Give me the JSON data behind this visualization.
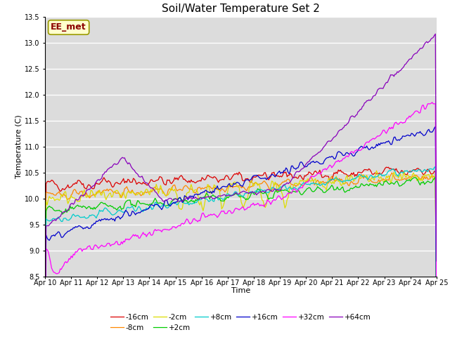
{
  "title": "Soil/Water Temperature Set 2",
  "xlabel": "Time",
  "ylabel": "Temperature (C)",
  "ylim": [
    8.5,
    13.5
  ],
  "background_color": "#dcdcdc",
  "annotation_text": "EE_met",
  "annotation_bg": "#ffffcc",
  "annotation_border": "#999900",
  "x_tick_labels": [
    "Apr 10",
    "Apr 11",
    "Apr 12",
    "Apr 13",
    "Apr 14",
    "Apr 15",
    "Apr 16",
    "Apr 17",
    "Apr 18",
    "Apr 19",
    "Apr 20",
    "Apr 21",
    "Apr 22",
    "Apr 23",
    "Apr 24",
    "Apr 25"
  ],
  "y_ticks": [
    8.5,
    9.0,
    9.5,
    10.0,
    10.5,
    11.0,
    11.5,
    12.0,
    12.5,
    13.0,
    13.5
  ],
  "series": [
    {
      "label": "-16cm",
      "color": "#dd0000"
    },
    {
      "label": "-8cm",
      "color": "#ff8800"
    },
    {
      "label": "-2cm",
      "color": "#dddd00"
    },
    {
      "label": "+2cm",
      "color": "#00cc00"
    },
    {
      "label": "+8cm",
      "color": "#00cccc"
    },
    {
      "label": "+16cm",
      "color": "#0000cc"
    },
    {
      "label": "+32cm",
      "color": "#ff00ff"
    },
    {
      "label": "+64cm",
      "color": "#8800bb"
    }
  ]
}
